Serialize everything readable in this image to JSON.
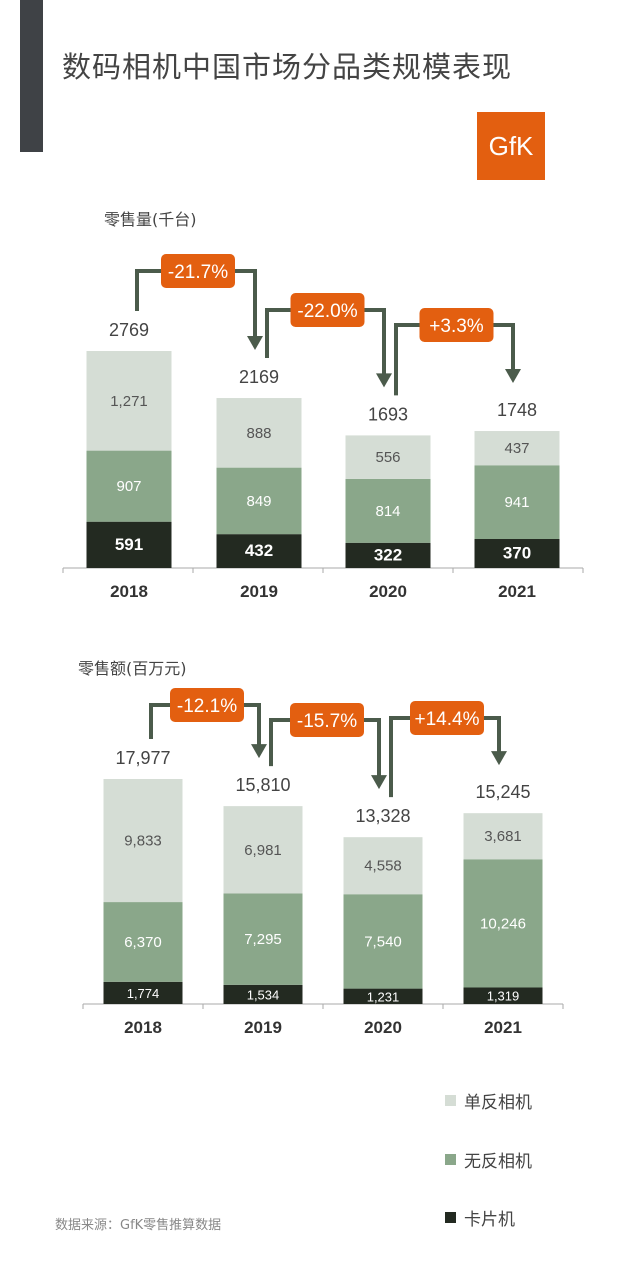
{
  "title": "数码相机中国市场分品类规模表现",
  "logo_text": "GfK",
  "colors": {
    "slr": "#d5ddd5",
    "mirrorless": "#8aa78a",
    "compact": "#232a21",
    "arrow": "#4b5b4b",
    "badge": "#e35f10"
  },
  "legend": [
    {
      "label": "单反相机",
      "color": "#d5ddd5"
    },
    {
      "label": "无反相机",
      "color": "#8aa78a"
    },
    {
      "label": "卡片机",
      "color": "#232a21"
    }
  ],
  "source": "数据来源：GfK零售推算数据",
  "chart_data": [
    {
      "type": "bar",
      "stacked": true,
      "title": "零售量(千台)",
      "categories": [
        "2018",
        "2019",
        "2020",
        "2021"
      ],
      "series": [
        {
          "name": "卡片机",
          "values": [
            591,
            432,
            322,
            370
          ]
        },
        {
          "name": "无反相机",
          "values": [
            907,
            849,
            814,
            941
          ]
        },
        {
          "name": "单反相机",
          "values": [
            1271,
            888,
            556,
            437
          ]
        }
      ],
      "value_labels": [
        [
          "591",
          "907",
          "1,271"
        ],
        [
          "432",
          "849",
          "888"
        ],
        [
          "322",
          "814",
          "556"
        ],
        [
          "370",
          "941",
          "437"
        ]
      ],
      "totals": [
        "2769",
        "2169",
        "1693",
        "1748"
      ],
      "changes": [
        "-21.7%",
        "-22.0%",
        "+3.3%"
      ]
    },
    {
      "type": "bar",
      "stacked": true,
      "title": "零售额(百万元)",
      "categories": [
        "2018",
        "2019",
        "2020",
        "2021"
      ],
      "series": [
        {
          "name": "卡片机",
          "values": [
            1774,
            1534,
            1231,
            1319
          ]
        },
        {
          "name": "无反相机",
          "values": [
            6370,
            7295,
            7540,
            10246
          ]
        },
        {
          "name": "单反相机",
          "values": [
            9833,
            6981,
            4558,
            3681
          ]
        }
      ],
      "value_labels": [
        [
          "1,774",
          "6,370",
          "9,833"
        ],
        [
          "1,534",
          "7,295",
          "6,981"
        ],
        [
          "1,231",
          "7,540",
          "4,558"
        ],
        [
          "1,319",
          "10,246",
          "3,681"
        ]
      ],
      "totals": [
        "17,977",
        "15,810",
        "13,328",
        "15,245"
      ],
      "changes": [
        "-12.1%",
        "-15.7%",
        "+14.4%"
      ]
    }
  ]
}
